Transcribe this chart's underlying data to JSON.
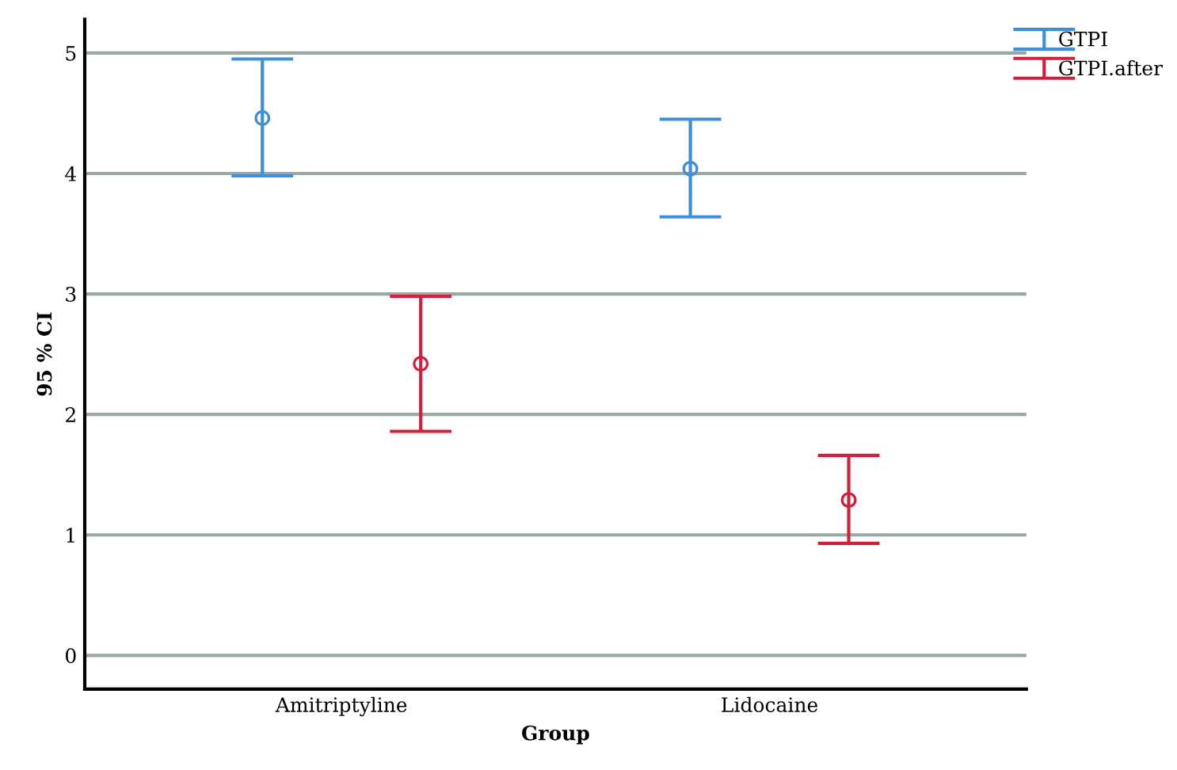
{
  "chart_data": {
    "type": "scatter",
    "xlabel": "Group",
    "ylabel": "95 % CI",
    "categories": [
      "Amitriptyline",
      "Lidocaine"
    ],
    "series": [
      {
        "name": "GTPI",
        "color": "#3d8fdc",
        "values": [
          4.46,
          4.04
        ],
        "errors": [
          [
            3.98,
            4.95
          ],
          [
            3.64,
            4.45
          ]
        ]
      },
      {
        "name": "GTPI.after",
        "color": "#d21f3c",
        "values": [
          2.42,
          1.29
        ],
        "errors": [
          [
            1.86,
            2.98
          ],
          [
            0.93,
            1.66
          ]
        ]
      }
    ],
    "ylim": [
      -0.28,
      5.28
    ],
    "yticks": [
      0,
      1,
      2,
      3,
      4,
      5
    ],
    "grid": "y",
    "legend": "top right",
    "marker": "circle"
  }
}
